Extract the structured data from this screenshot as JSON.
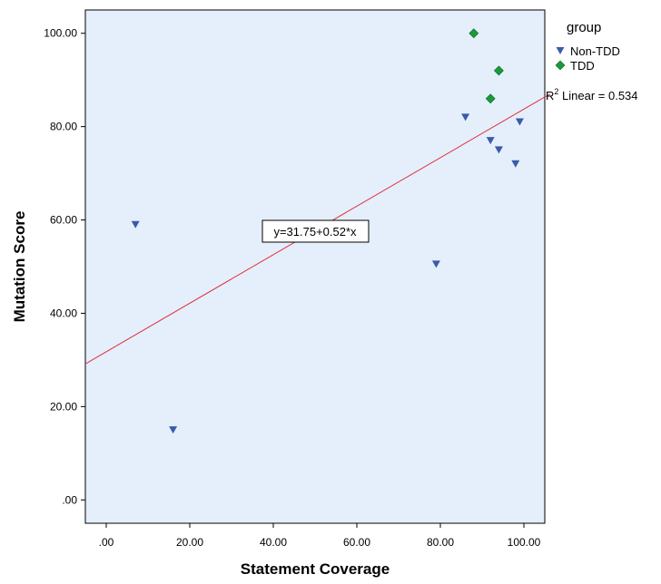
{
  "chart_data": {
    "type": "scatter",
    "xlabel": "Statement Coverage",
    "ylabel": "Mutation Score",
    "xlim": [
      -5,
      105
    ],
    "ylim": [
      -5,
      105
    ],
    "xticks": [
      ".00",
      "20.00",
      "40.00",
      "60.00",
      "80.00",
      "100.00"
    ],
    "yticks": [
      ".00",
      "20.00",
      "40.00",
      "60.00",
      "80.00",
      "100.00"
    ],
    "xtick_values": [
      0,
      20,
      40,
      60,
      80,
      100
    ],
    "ytick_values": [
      0,
      20,
      40,
      60,
      80,
      100
    ],
    "plot_background": "#e4effb",
    "grid": false,
    "legend": {
      "title": "group",
      "placement": "top-right-outside",
      "entries": [
        {
          "name": "Non-TDD",
          "marker": "triangle-down",
          "color": "#3a5ba8"
        },
        {
          "name": "TDD",
          "marker": "diamond",
          "color": "#1a9a3a"
        }
      ]
    },
    "series": [
      {
        "name": "Non-TDD",
        "marker": "triangle-down",
        "color": "#3a5ba8",
        "points": [
          [
            7,
            59
          ],
          [
            16,
            15
          ],
          [
            79,
            50.5
          ],
          [
            86,
            82
          ],
          [
            92,
            77
          ],
          [
            94,
            75
          ],
          [
            98,
            72
          ],
          [
            99,
            81
          ]
        ]
      },
      {
        "name": "TDD",
        "marker": "diamond",
        "color": "#1a9a3a",
        "points": [
          [
            88,
            100
          ],
          [
            94,
            92
          ],
          [
            92,
            86
          ]
        ]
      }
    ],
    "fit_line": {
      "intercept": 31.75,
      "slope": 0.52,
      "color": "#e0303a",
      "equation_label": "y=31.75+0.52*x",
      "r2_prefix": "R",
      "r2_sup": "2",
      "r2_label": " Linear = 0.534"
    }
  }
}
